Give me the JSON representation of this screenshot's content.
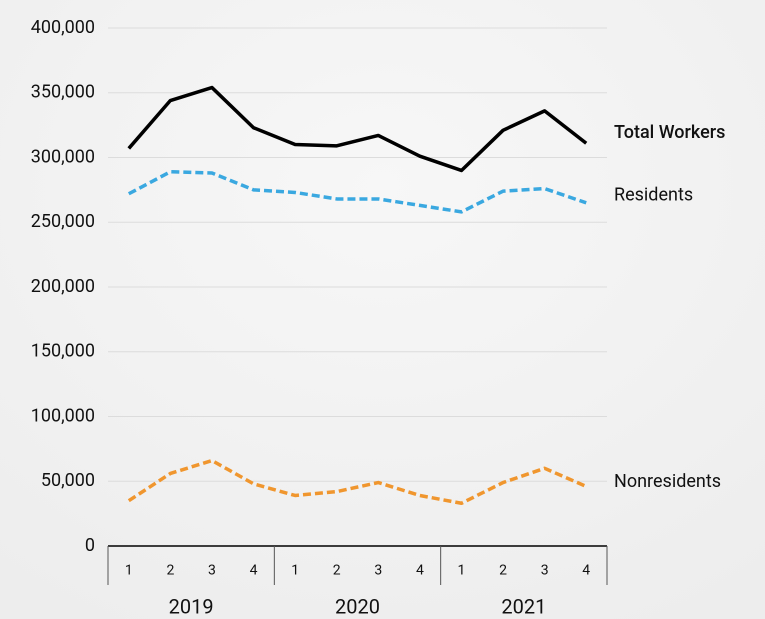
{
  "chart_data": {
    "type": "line",
    "categories": [
      "1",
      "2",
      "3",
      "4",
      "1",
      "2",
      "3",
      "4",
      "1",
      "2",
      "3",
      "4"
    ],
    "years": [
      "2019",
      "2020",
      "2021"
    ],
    "series": [
      {
        "name": "Total Workers",
        "color": "#000000",
        "dashed": false,
        "values": [
          307000,
          344000,
          354000,
          323000,
          310000,
          309000,
          317000,
          301000,
          290000,
          321000,
          336000,
          311000
        ]
      },
      {
        "name": "Residents",
        "color": "#3aa8e0",
        "dashed": true,
        "values": [
          272000,
          289000,
          288000,
          275000,
          273000,
          268000,
          268000,
          263000,
          258000,
          274000,
          276000,
          265000
        ]
      },
      {
        "name": "Nonresidents",
        "color": "#f0962e",
        "dashed": true,
        "values": [
          35000,
          56000,
          66000,
          48000,
          39000,
          42000,
          49000,
          39000,
          33000,
          49000,
          60000,
          46000
        ]
      }
    ],
    "ylim": [
      0,
      400000
    ],
    "yticks": [
      0,
      {
        "value": 50000,
        "label": "50,000"
      },
      {
        "value": 100000,
        "label": "100,000"
      },
      {
        "value": 150000,
        "label": "150,000"
      },
      {
        "value": 200000,
        "label": "200,000"
      },
      {
        "value": 250000,
        "label": "250,000"
      },
      {
        "value": 300000,
        "label": "300,000"
      },
      {
        "value": 350000,
        "label": "350,000"
      },
      {
        "value": 400000,
        "label": "400,000"
      }
    ],
    "grid": true
  }
}
